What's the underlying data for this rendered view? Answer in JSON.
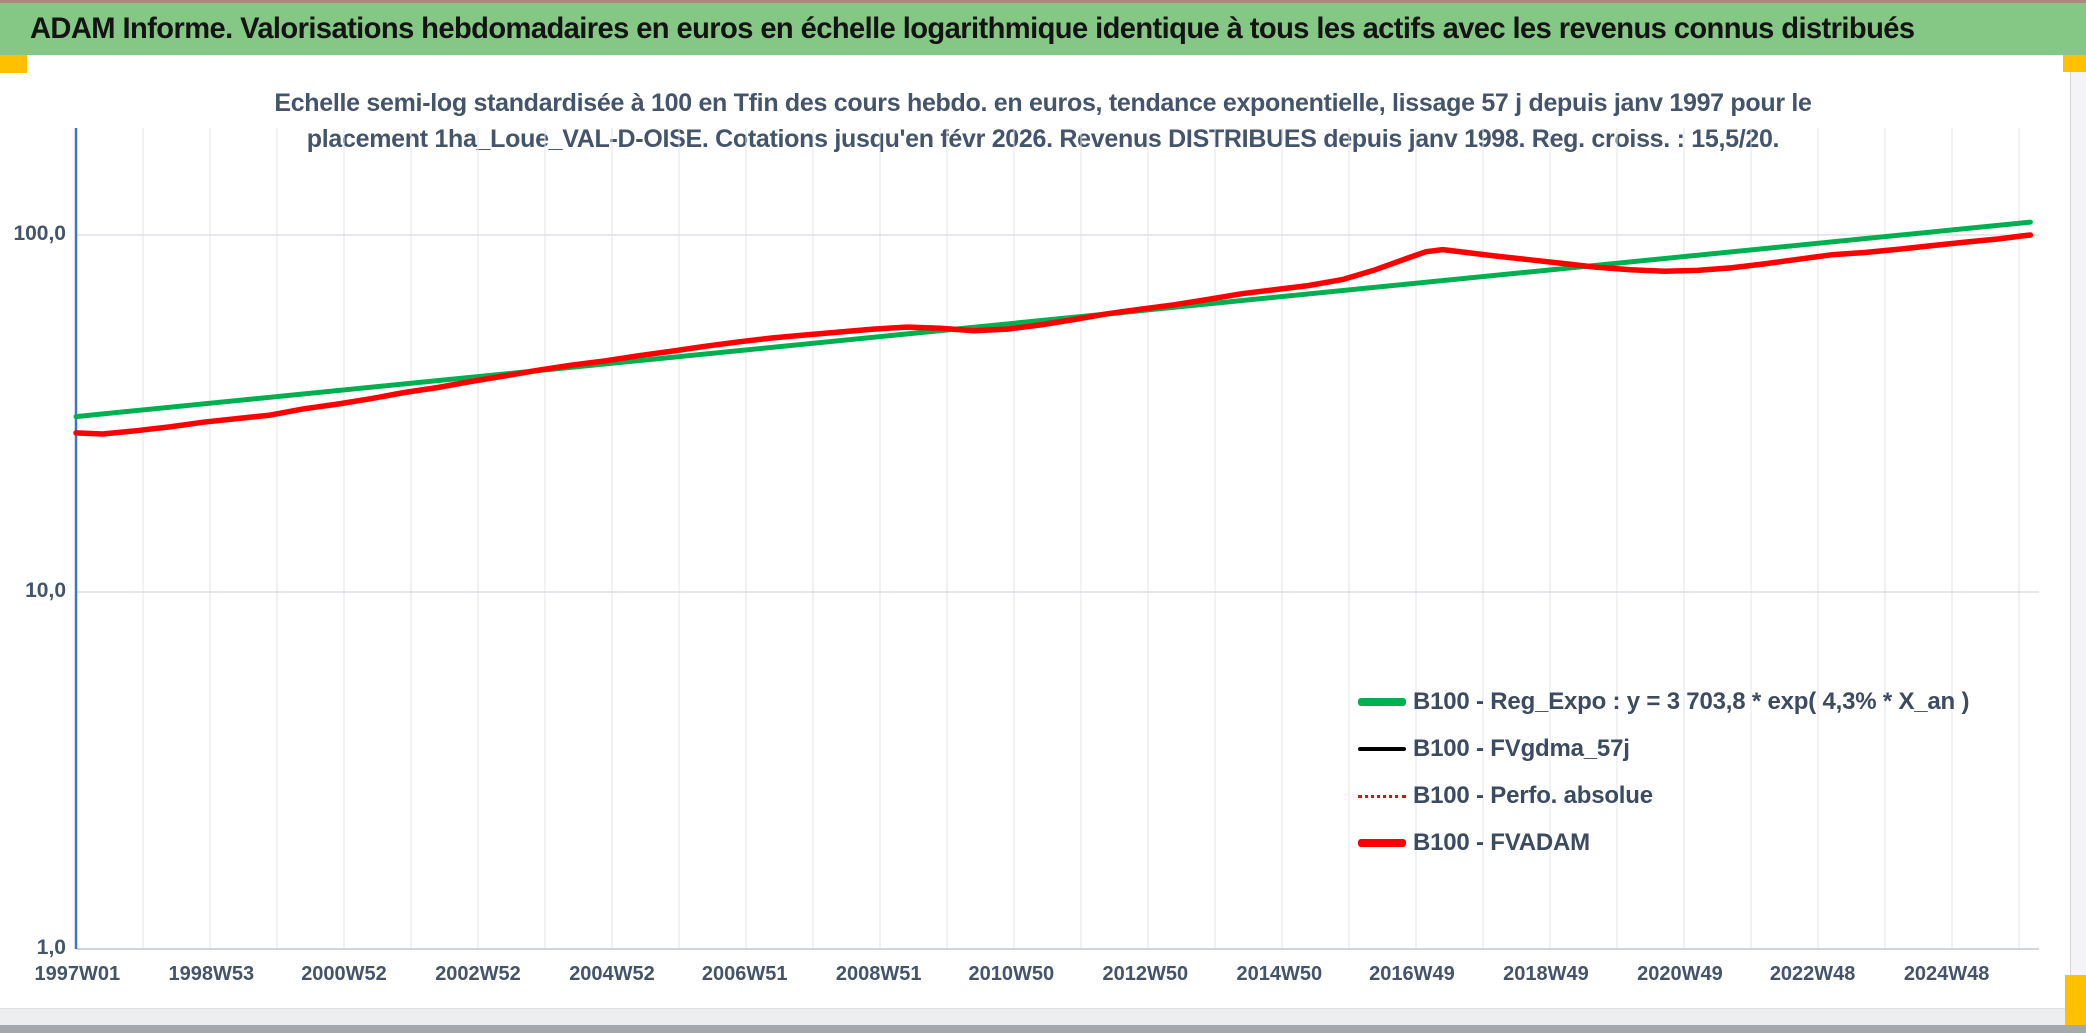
{
  "window": {
    "title": "ADAM Informe. Valorisations hebdomadaires en euros en échelle logarithmique identique à tous les actifs avec les revenus connus distribués",
    "title_bar_color": "#85C785",
    "accent_color": "#FFC000"
  },
  "chart_data": {
    "type": "line",
    "title_line1": "Echelle semi-log standardisée à 100 en Tfin des cours hebdo. en euros, tendance exponentielle, lissage 57 j depuis janv 1997 pour le",
    "title_line2": "placement 1ha_Loue_VAL-D-OISE. Cotations jusqu'en févr 2026. Revenus DISTRIBUES depuis janv 1998. Reg. croiss. : 15,5/20.",
    "text_color": "#44546A",
    "y_axis": {
      "scale": "log",
      "tick_labels": [
        "100,0",
        "10,0",
        "1,0"
      ],
      "tick_values": [
        100,
        10,
        1
      ],
      "range": [
        1,
        200
      ],
      "axis_line_color": "#4472C4"
    },
    "x_axis": {
      "tick_labels": [
        "1997W01",
        "1998W53",
        "2000W52",
        "2002W52",
        "2004W52",
        "2006W51",
        "2008W51",
        "2010W50",
        "2012W50",
        "2014W50",
        "2016W49",
        "2018W49",
        "2020W49",
        "2022W48",
        "2024W48"
      ],
      "tick_years": [
        1997.02,
        1999.02,
        2001.0,
        2003.0,
        2005.0,
        2006.98,
        2008.98,
        2010.96,
        2012.96,
        2014.96,
        2016.94,
        2018.94,
        2020.94,
        2022.92,
        2024.92
      ],
      "range_years": [
        1997.0,
        2026.3
      ],
      "gridline_interval_years": 1
    },
    "grid": {
      "vertical_color": "#E2E5EC",
      "horizontal_color": "#D8DBE2",
      "baseline_color": "#C4C7CE"
    },
    "legend_position": "bottom-right",
    "series": [
      {
        "name": "B100 - Reg_Expo : y = 3 703,8 * exp( 4,3% *  X_an )",
        "color": "#00B050",
        "width": 5,
        "style": "solid",
        "points": [
          [
            1997.0,
            31.0
          ],
          [
            2026.17,
            108.7
          ]
        ]
      },
      {
        "name": "B100 - FVgdma_57j",
        "color": "#000000",
        "width": 2.5,
        "style": "solid",
        "points_same_as": "B100 - FVADAM"
      },
      {
        "name": "B100 - Perfo. absolue",
        "color": "#FF0000",
        "width": 2,
        "style": "dotted",
        "points_same_as": "B100 - FVADAM"
      },
      {
        "name": "B100 - FVADAM",
        "color": "#FF0000",
        "width": 5.5,
        "style": "solid",
        "points": [
          [
            1997.0,
            27.9
          ],
          [
            1997.4,
            27.7
          ],
          [
            1997.9,
            28.3
          ],
          [
            1998.4,
            29.0
          ],
          [
            1998.9,
            29.9
          ],
          [
            1999.4,
            30.6
          ],
          [
            1999.9,
            31.3
          ],
          [
            2000.4,
            32.6
          ],
          [
            2000.9,
            33.6
          ],
          [
            2001.4,
            34.8
          ],
          [
            2001.9,
            36.2
          ],
          [
            2002.4,
            37.4
          ],
          [
            2002.9,
            38.9
          ],
          [
            2003.4,
            40.3
          ],
          [
            2003.9,
            41.8
          ],
          [
            2004.4,
            43.2
          ],
          [
            2004.9,
            44.4
          ],
          [
            2005.4,
            45.9
          ],
          [
            2005.9,
            47.3
          ],
          [
            2006.4,
            48.8
          ],
          [
            2006.9,
            50.2
          ],
          [
            2007.4,
            51.5
          ],
          [
            2007.9,
            52.5
          ],
          [
            2008.4,
            53.5
          ],
          [
            2008.9,
            54.5
          ],
          [
            2009.4,
            55.2
          ],
          [
            2009.9,
            54.8
          ],
          [
            2010.4,
            53.9
          ],
          [
            2010.9,
            54.5
          ],
          [
            2011.4,
            56.0
          ],
          [
            2011.9,
            58.0
          ],
          [
            2012.4,
            60.2
          ],
          [
            2012.9,
            62.0
          ],
          [
            2013.4,
            63.8
          ],
          [
            2013.9,
            66.0
          ],
          [
            2014.4,
            68.5
          ],
          [
            2014.9,
            70.3
          ],
          [
            2015.4,
            72.2
          ],
          [
            2015.9,
            75.0
          ],
          [
            2016.4,
            80.0
          ],
          [
            2016.9,
            86.5
          ],
          [
            2017.15,
            89.8
          ],
          [
            2017.4,
            91.0
          ],
          [
            2017.75,
            89.3
          ],
          [
            2018.2,
            87.3
          ],
          [
            2018.7,
            85.2
          ],
          [
            2019.2,
            83.2
          ],
          [
            2019.7,
            81.2
          ],
          [
            2020.2,
            79.9
          ],
          [
            2020.7,
            79.2
          ],
          [
            2021.2,
            79.6
          ],
          [
            2021.7,
            80.9
          ],
          [
            2022.2,
            83.0
          ],
          [
            2022.7,
            85.5
          ],
          [
            2023.2,
            88.0
          ],
          [
            2023.7,
            89.3
          ],
          [
            2024.2,
            91.2
          ],
          [
            2024.7,
            93.4
          ],
          [
            2025.2,
            95.5
          ],
          [
            2025.7,
            97.5
          ],
          [
            2026.05,
            99.4
          ],
          [
            2026.17,
            100.0
          ]
        ]
      }
    ]
  }
}
